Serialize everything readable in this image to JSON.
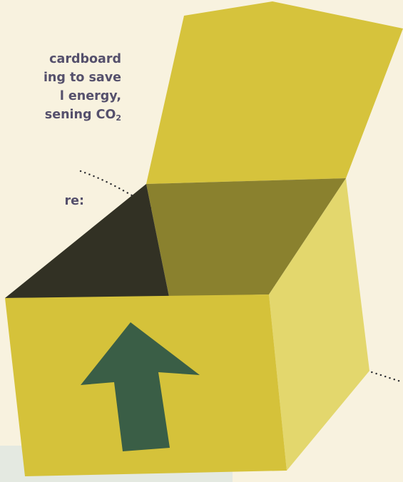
{
  "infographic": {
    "intro_lines": [
      "cardboard",
      "ing to save",
      "l energy,",
      "sening CO"
    ],
    "co2_subscript": "2",
    "side_label": "re:"
  },
  "colors": {
    "background": "#f8f2df",
    "text": "#55506c",
    "box_front": "#d5c23a",
    "box_lid": "#d6c33c",
    "box_side": "#e3d76d",
    "box_inside_back": "#8a812e",
    "box_inside_dark": "#323124",
    "arrow": "#3a5e46",
    "bottom_panel": "#e4e9e1"
  },
  "icons": [
    "open-box-icon",
    "up-arrow-icon"
  ]
}
